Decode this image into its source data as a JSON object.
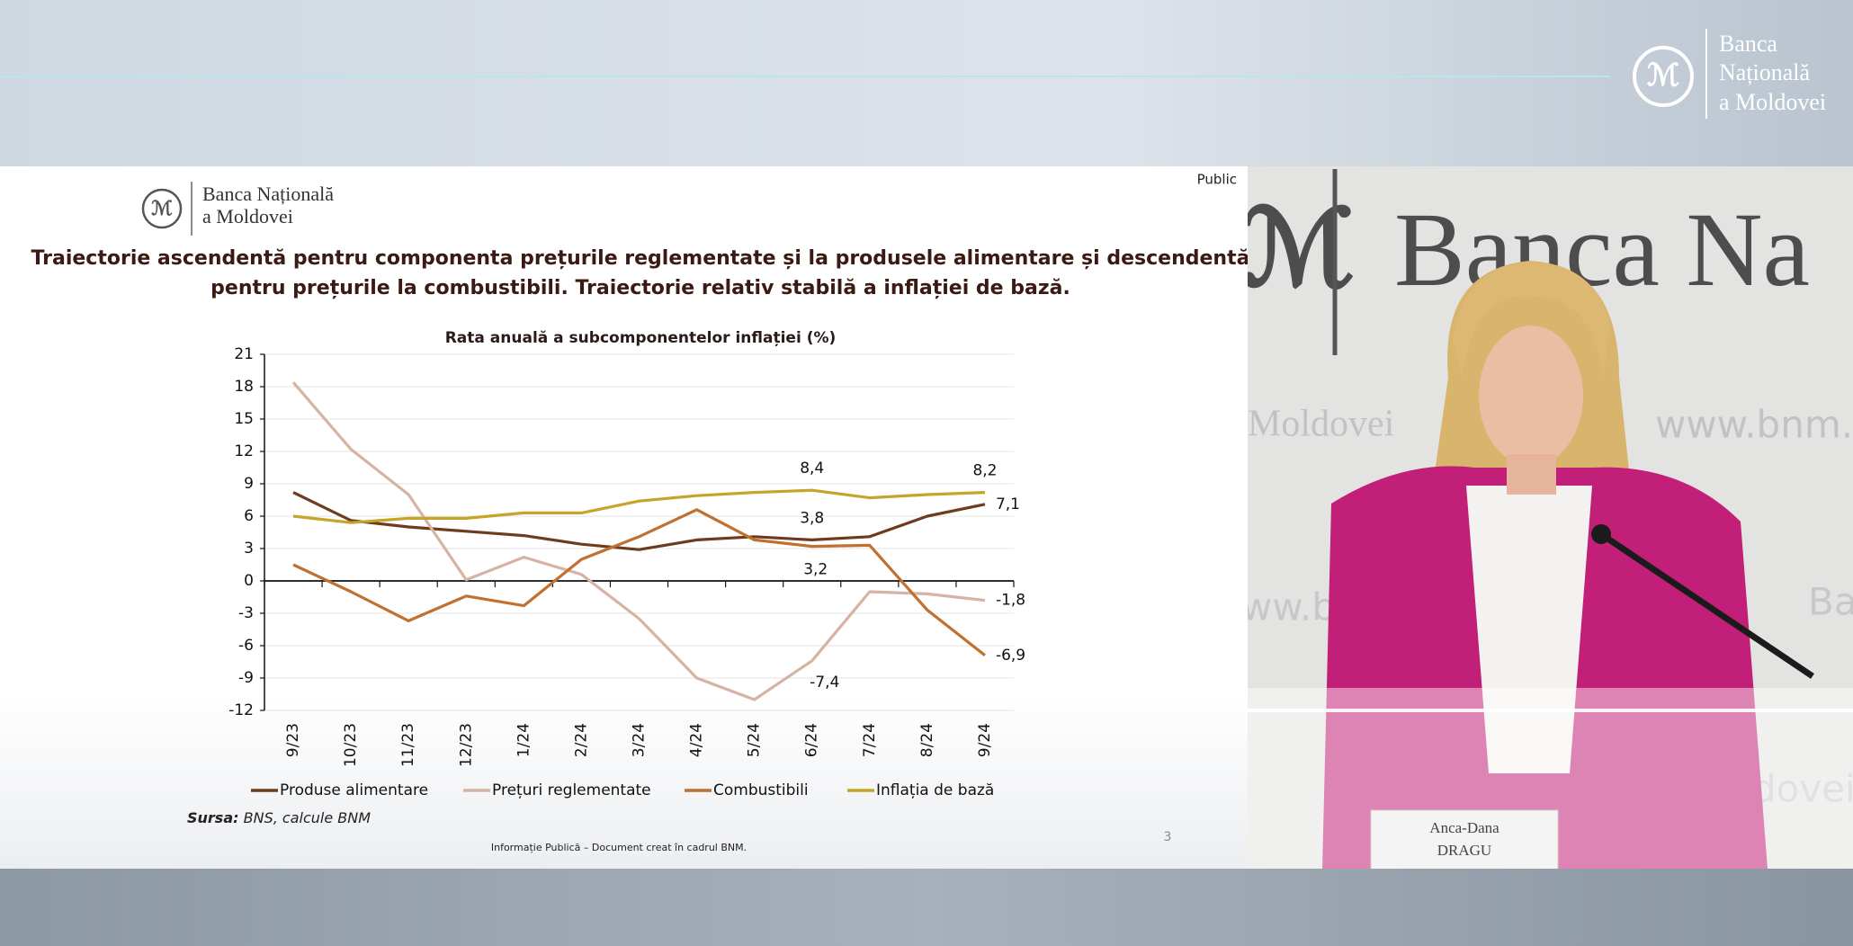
{
  "header": {
    "logo_lines": [
      "Banca",
      "Națională",
      "a Moldovei"
    ]
  },
  "slide": {
    "logo_lines": [
      "Banca Națională",
      "a Moldovei"
    ],
    "classification": "Public",
    "title_lines": [
      "Traiectorie ascendentă pentru componenta prețurile reglementate și la produsele alimentare și descendentă",
      "pentru prețurile la combustibili. Traiectorie relativ stabilă a inflației de bază."
    ],
    "source_label": "Sursa:",
    "source_text": "BNS, calcule BNM",
    "footer": "Informație Publică – Document creat în cadrul BNM.",
    "page_number": "3"
  },
  "chart_data": {
    "type": "line",
    "title": "Rata anuală a subcomponentelor inflației (%)",
    "categories": [
      "9/23",
      "10/23",
      "11/23",
      "12/23",
      "1/24",
      "2/24",
      "3/24",
      "4/24",
      "5/24",
      "6/24",
      "7/24",
      "8/24",
      "9/24"
    ],
    "series": [
      {
        "name": "Produse alimentare",
        "color": "#6e3b1f",
        "values": [
          8.2,
          5.6,
          5.0,
          4.6,
          4.2,
          3.4,
          2.9,
          3.8,
          4.1,
          3.8,
          4.1,
          6.0,
          7.1
        ],
        "value_labels": [
          null,
          null,
          null,
          null,
          null,
          null,
          null,
          null,
          null,
          "3,8",
          null,
          null,
          "7,1"
        ]
      },
      {
        "name": "Prețuri reglementate",
        "color": "#d6b3a4",
        "values": [
          18.4,
          12.2,
          8.0,
          0.1,
          2.2,
          0.6,
          -3.5,
          -9.0,
          -11.0,
          -7.4,
          -1.0,
          -1.2,
          -1.8
        ],
        "value_labels": [
          null,
          null,
          null,
          null,
          null,
          null,
          null,
          null,
          null,
          "-7,4",
          null,
          null,
          "-1,8"
        ]
      },
      {
        "name": "Combustibili",
        "color": "#c0702f",
        "values": [
          1.5,
          -1.0,
          -3.7,
          -1.4,
          -2.3,
          2.0,
          4.1,
          6.6,
          3.8,
          3.2,
          3.3,
          -2.7,
          -6.9
        ],
        "value_labels": [
          null,
          null,
          null,
          null,
          null,
          null,
          null,
          null,
          null,
          "3,2",
          null,
          null,
          "-6,9"
        ]
      },
      {
        "name": "Inflația de bază",
        "color": "#c6a428",
        "values": [
          6.0,
          5.4,
          5.8,
          5.8,
          6.3,
          6.3,
          7.4,
          7.9,
          8.2,
          8.4,
          7.7,
          8.0,
          8.2
        ],
        "value_labels": [
          null,
          null,
          null,
          null,
          null,
          null,
          null,
          null,
          null,
          "8,4",
          null,
          null,
          "8,2"
        ]
      }
    ],
    "ylim": [
      -12,
      21
    ],
    "yticks": [
      -12,
      -9,
      -6,
      -3,
      0,
      3,
      6,
      9,
      12,
      15,
      18,
      21
    ],
    "grid": true,
    "legend": "bottom"
  },
  "video": {
    "backdrop_texts": [
      "Banca Na",
      "Moldovei",
      "www.bnm.m",
      "ww.bn",
      "Ban",
      "dovei"
    ],
    "name_card": [
      "Anca-Dana",
      "DRAGU"
    ]
  }
}
